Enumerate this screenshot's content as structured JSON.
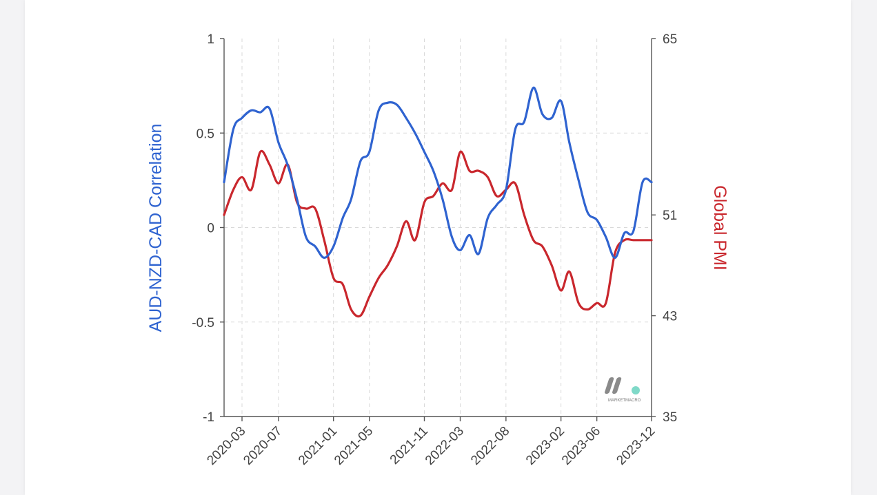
{
  "chart_data": {
    "type": "line",
    "title": "",
    "left_axis": {
      "label": "AUD-NZD-CAD Correlation",
      "ylim": [
        -1,
        1
      ],
      "ticks": [
        "1",
        "0.5",
        "0",
        "-0.5",
        "-1"
      ],
      "color": "#2f63d0"
    },
    "right_axis": {
      "label": "Global PMI",
      "ylim": [
        35,
        65
      ],
      "ticks": [
        "65",
        "51",
        "43",
        "35"
      ],
      "color": "#c9272d"
    },
    "x_ticks": [
      "2020-03",
      "2020-07",
      "2021-01",
      "2021-05",
      "2021-11",
      "2022-03",
      "2022-08",
      "2023-02",
      "2023-06",
      "2023-12"
    ],
    "grid": true,
    "series": [
      {
        "name": "AUD-NZD-CAD Correlation",
        "axis": "left",
        "color": "#2f63d0",
        "x": [
          "2020-01-01",
          "2020-02-01",
          "2020-03-01",
          "2020-04-01",
          "2020-05-01",
          "2020-06-01",
          "2020-07-01",
          "2020-08-01",
          "2020-09-01",
          "2020-10-01",
          "2020-11-01",
          "2020-12-01",
          "2021-01-01",
          "2021-02-01",
          "2021-03-01",
          "2021-04-01",
          "2021-05-01",
          "2021-06-01",
          "2021-07-01",
          "2021-08-01",
          "2021-09-01",
          "2021-10-01",
          "2021-11-01",
          "2021-12-01",
          "2022-01-01",
          "2022-02-01",
          "2022-03-01",
          "2022-04-01",
          "2022-05-01",
          "2022-06-01",
          "2022-07-01",
          "2022-08-01",
          "2022-09-01",
          "2022-10-01",
          "2022-11-01",
          "2022-12-01",
          "2023-01-01",
          "2023-02-01",
          "2023-03-01",
          "2023-04-01",
          "2023-05-01",
          "2023-06-01",
          "2023-07-01",
          "2023-08-01",
          "2023-09-01",
          "2023-10-01",
          "2023-11-01",
          "2023-12-01"
        ],
        "values": [
          0.24,
          0.52,
          0.58,
          0.62,
          0.61,
          0.63,
          0.45,
          0.33,
          0.15,
          -0.05,
          -0.1,
          -0.16,
          -0.1,
          0.05,
          0.15,
          0.35,
          0.4,
          0.62,
          0.66,
          0.65,
          0.58,
          0.5,
          0.4,
          0.3,
          0.15,
          -0.05,
          -0.12,
          -0.04,
          -0.14,
          0.05,
          0.12,
          0.2,
          0.52,
          0.56,
          0.74,
          0.6,
          0.58,
          0.67,
          0.45,
          0.25,
          0.08,
          0.04,
          -0.05,
          -0.16,
          -0.03,
          -0.02,
          0.24,
          0.24
        ]
      },
      {
        "name": "Global PMI",
        "axis": "right",
        "color": "#c9272d",
        "x": [
          "2020-01-01",
          "2020-02-01",
          "2020-03-01",
          "2020-04-01",
          "2020-05-01",
          "2020-06-01",
          "2020-07-01",
          "2020-08-01",
          "2020-09-01",
          "2020-10-01",
          "2020-11-01",
          "2020-12-01",
          "2021-01-01",
          "2021-02-01",
          "2021-03-01",
          "2021-04-01",
          "2021-05-01",
          "2021-06-01",
          "2021-07-01",
          "2021-08-01",
          "2021-09-01",
          "2021-10-01",
          "2021-11-01",
          "2021-12-01",
          "2022-01-01",
          "2022-02-01",
          "2022-03-01",
          "2022-04-01",
          "2022-05-01",
          "2022-06-01",
          "2022-07-01",
          "2022-08-01",
          "2022-09-01",
          "2022-10-01",
          "2022-11-01",
          "2022-12-01",
          "2023-01-01",
          "2023-02-01",
          "2023-03-01",
          "2023-04-01",
          "2023-05-01",
          "2023-06-01",
          "2023-07-01",
          "2023-08-01",
          "2023-09-01",
          "2023-10-01",
          "2023-11-01",
          "2023-12-01"
        ],
        "values": [
          51.0,
          53.0,
          54.0,
          53.0,
          56.0,
          55.0,
          53.5,
          55.0,
          52.0,
          51.5,
          51.5,
          49.0,
          46.0,
          45.5,
          43.5,
          43.0,
          44.5,
          46.0,
          47.0,
          48.5,
          50.5,
          49.0,
          52.0,
          52.5,
          53.5,
          53.0,
          56.0,
          54.5,
          54.5,
          54.0,
          52.5,
          53.0,
          53.5,
          51.0,
          49.0,
          48.5,
          47.0,
          45.0,
          46.5,
          44.0,
          43.5,
          44.0,
          44.0,
          48.0,
          49.0,
          49.0,
          49.0,
          49.0
        ]
      }
    ]
  },
  "watermark": {
    "text": "MARKETMACRO"
  }
}
